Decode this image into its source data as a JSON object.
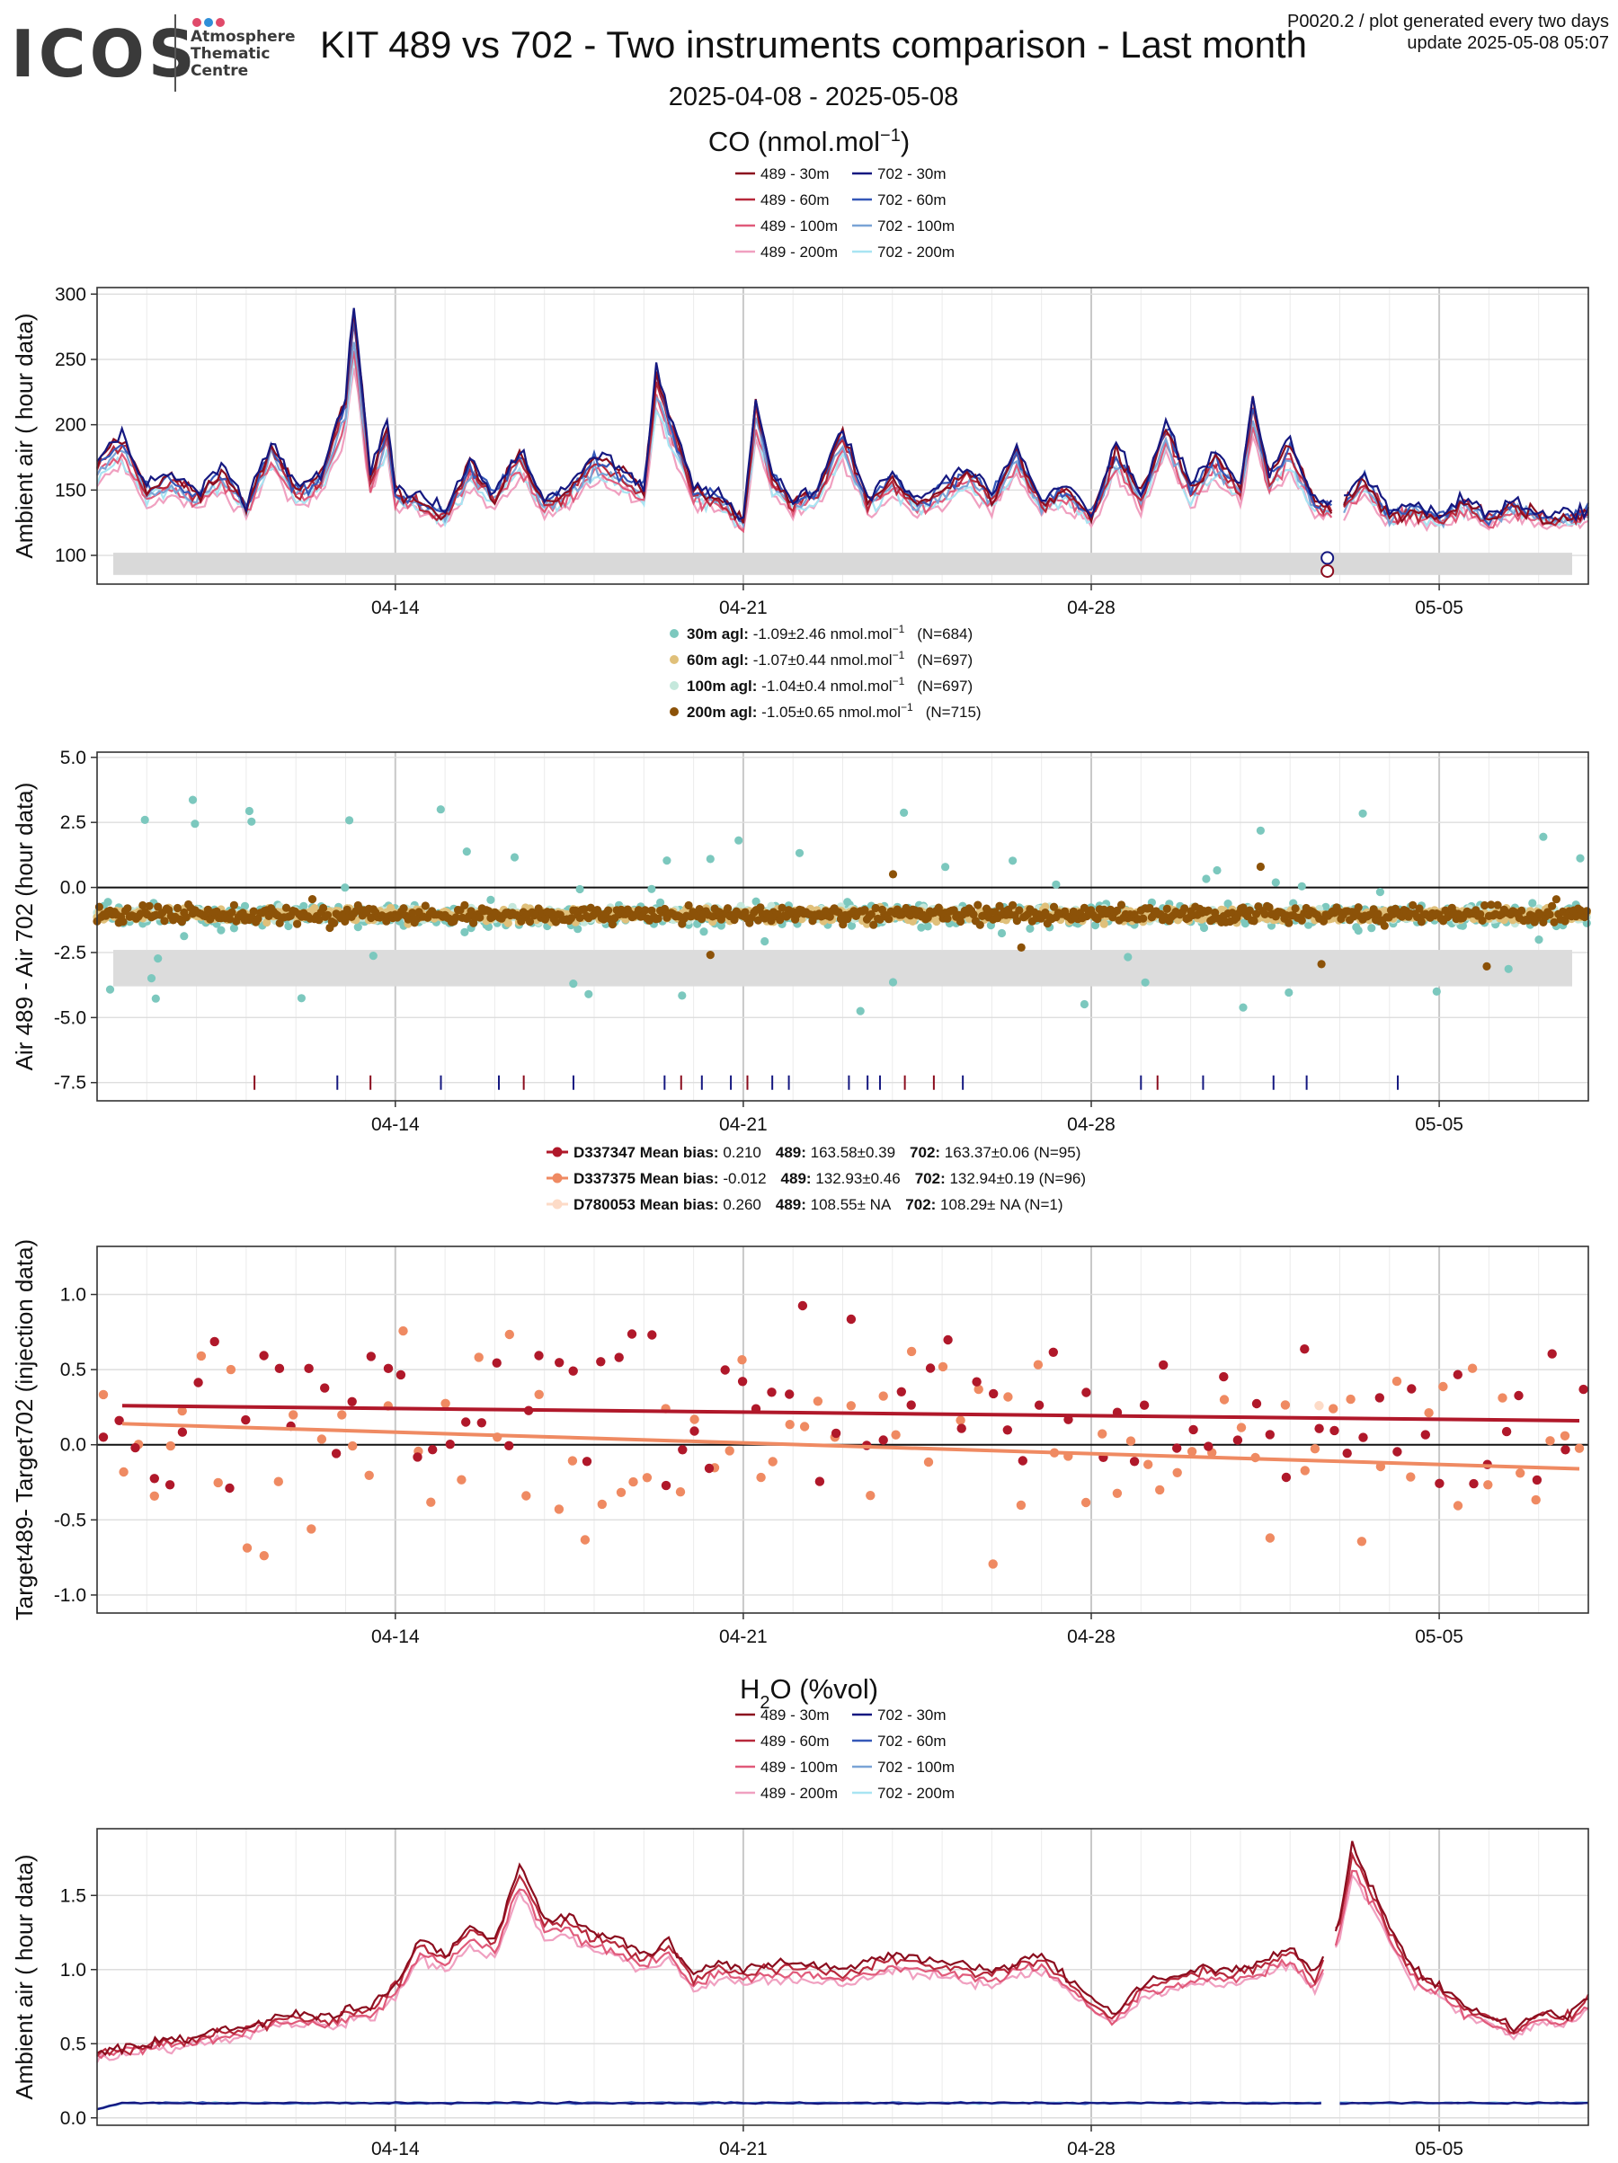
{
  "header": {
    "logo": "ICOS",
    "logo_sub": [
      "Atmosphere",
      "Thematic",
      "Centre"
    ],
    "title": "KIT 489 vs 702 - Two instruments comparison - Last month",
    "subtitle": "2025-04-08 - 2025-05-08",
    "meta_line1": "P0020.2 / plot generated every two days",
    "meta_line2": "update  2025-05-08 05:07"
  },
  "colors": {
    "489_30": "#8b0d1e",
    "489_60": "#b7283b",
    "489_100": "#e05a7a",
    "489_200": "#f0a0c0",
    "702_30": "#151880",
    "702_60": "#3558b8",
    "702_100": "#7aa4d6",
    "702_200": "#a8e4f2",
    "diff_30": "#7cc8be",
    "diff_60": "#e0c07a",
    "diff_100": "#c5e8dc",
    "diff_200": "#8c5208",
    "tgt_1": "#b0182a",
    "tgt_2": "#ef8a62",
    "tgt_3": "#fddbc7"
  },
  "chart_data": [
    {
      "id": "co_ambient",
      "type": "line",
      "title": "CO (nmol.mol",
      "title_sup": "−1",
      "title_end": ")",
      "ylabel": "Ambient air ( hour data)",
      "xlim": [
        "2025-04-08",
        "2025-05-08"
      ],
      "ylim": [
        78,
        305
      ],
      "x_ticks": [
        "04-14",
        "04-21",
        "04-28",
        "05-05"
      ],
      "y_ticks": [
        100,
        150,
        200,
        250,
        300
      ],
      "band": [
        85,
        102
      ],
      "legend": [
        "489 - 30m",
        "489 - 60m",
        "489 - 100m",
        "489 - 200m",
        "702 - 30m",
        "702 - 60m",
        "702 - 100m",
        "702 - 200m"
      ],
      "markers": [
        {
          "x": "2025-05-02T18:00",
          "y": 98,
          "series": "702"
        },
        {
          "x": "2025-05-02T18:00",
          "y": 88,
          "series": "489"
        }
      ],
      "series_profile": [
        [
          "2025-04-08",
          172
        ],
        [
          "2025-04-08T12",
          190
        ],
        [
          "2025-04-09",
          150
        ],
        [
          "2025-04-09T12",
          160
        ],
        [
          "2025-04-10",
          145
        ],
        [
          "2025-04-10T12",
          165
        ],
        [
          "2025-04-11",
          138
        ],
        [
          "2025-04-11T12",
          185
        ],
        [
          "2025-04-12",
          150
        ],
        [
          "2025-04-12T12",
          160
        ],
        [
          "2025-04-13",
          220
        ],
        [
          "2025-04-13T04",
          292
        ],
        [
          "2025-04-13T12",
          160
        ],
        [
          "2025-04-13T20",
          200
        ],
        [
          "2025-04-14",
          148
        ],
        [
          "2025-04-14T12",
          142
        ],
        [
          "2025-04-15",
          130
        ],
        [
          "2025-04-15T12",
          170
        ],
        [
          "2025-04-16",
          145
        ],
        [
          "2025-04-16T12",
          180
        ],
        [
          "2025-04-17",
          140
        ],
        [
          "2025-04-17T12",
          150
        ],
        [
          "2025-04-18",
          175
        ],
        [
          "2025-04-18T12",
          165
        ],
        [
          "2025-04-19",
          150
        ],
        [
          "2025-04-19T06",
          240
        ],
        [
          "2025-04-19T14",
          200
        ],
        [
          "2025-04-20",
          150
        ],
        [
          "2025-04-20T12",
          145
        ],
        [
          "2025-04-21",
          125
        ],
        [
          "2025-04-21T06",
          215
        ],
        [
          "2025-04-21T14",
          160
        ],
        [
          "2025-04-22",
          140
        ],
        [
          "2025-04-22T12",
          150
        ],
        [
          "2025-04-23",
          195
        ],
        [
          "2025-04-23T12",
          140
        ],
        [
          "2025-04-24",
          160
        ],
        [
          "2025-04-24T12",
          140
        ],
        [
          "2025-04-25",
          150
        ],
        [
          "2025-04-25T12",
          165
        ],
        [
          "2025-04-26",
          145
        ],
        [
          "2025-04-26T12",
          180
        ],
        [
          "2025-04-27",
          140
        ],
        [
          "2025-04-27T12",
          150
        ],
        [
          "2025-04-28",
          130
        ],
        [
          "2025-04-28T12",
          180
        ],
        [
          "2025-04-29",
          145
        ],
        [
          "2025-04-29T12",
          200
        ],
        [
          "2025-04-30",
          150
        ],
        [
          "2025-04-30T12",
          175
        ],
        [
          "2025-05-01",
          150
        ],
        [
          "2025-05-01T06",
          218
        ],
        [
          "2025-05-01T14",
          160
        ],
        [
          "2025-05-02",
          185
        ],
        [
          "2025-05-02T12",
          140
        ],
        [
          "2025-05-03",
          135
        ],
        [
          "2025-05-03T12",
          160
        ],
        [
          "2025-05-04",
          130
        ],
        [
          "2025-05-04T12",
          135
        ],
        [
          "2025-05-05",
          128
        ],
        [
          "2025-05-05T12",
          140
        ],
        [
          "2025-05-06",
          128
        ],
        [
          "2025-05-06T12",
          138
        ],
        [
          "2025-05-07",
          130
        ],
        [
          "2025-05-07T12",
          128
        ],
        [
          "2025-05-08",
          132
        ]
      ]
    },
    {
      "id": "co_diff",
      "type": "scatter",
      "ylabel": "Air 489 - Air 702 (hour data)",
      "xlim": [
        "2025-04-08",
        "2025-05-08"
      ],
      "ylim": [
        -8.2,
        5.2
      ],
      "x_ticks": [
        "04-14",
        "04-21",
        "04-28",
        "05-05"
      ],
      "y_ticks": [
        5.0,
        2.5,
        0.0,
        -2.5,
        -5.0,
        -7.5
      ],
      "band": [
        -3.8,
        -2.4
      ],
      "legend": [
        {
          "label": "30m agl:",
          "text": "-1.09±2.46 nmol.mol",
          "sup": "−1",
          "n": "(N=684)"
        },
        {
          "label": "60m agl:",
          "text": "-1.07±0.44 nmol.mol",
          "sup": "−1",
          "n": "(N=697)"
        },
        {
          "label": "100m agl:",
          "text": "-1.04±0.4 nmol.mol",
          "sup": "−1",
          "n": "(N=697)"
        },
        {
          "label": "200m agl:",
          "text": "-1.05±0.65 nmol.mol",
          "sup": "−1",
          "n": "(N=715)"
        }
      ],
      "series": [
        {
          "name": "30m agl",
          "mean": -1.09,
          "sd": 2.46,
          "n": 684
        },
        {
          "name": "60m agl",
          "mean": -1.07,
          "sd": 0.44,
          "n": 697
        },
        {
          "name": "100m agl",
          "mean": -1.04,
          "sd": 0.4,
          "n": 697
        },
        {
          "name": "200m agl",
          "mean": -1.05,
          "sd": 0.65,
          "n": 715
        }
      ],
      "event_ticks_702": [
        "2025-04-12T20",
        "2025-04-14T22",
        "2025-04-16T02",
        "2025-04-17T14",
        "2025-04-19T10",
        "2025-04-20T04",
        "2025-04-20T18",
        "2025-04-21T14",
        "2025-04-21T22",
        "2025-04-23T03",
        "2025-04-23T12",
        "2025-04-23T18",
        "2025-04-25T10",
        "2025-04-29T00",
        "2025-04-30T06",
        "2025-05-01T16",
        "2025-05-02T08",
        "2025-05-04T04"
      ],
      "event_ticks_489": [
        "2025-04-11T04",
        "2025-04-13T12",
        "2025-04-16T14",
        "2025-04-19T18",
        "2025-04-21T02",
        "2025-04-24T06",
        "2025-04-24T20",
        "2025-04-29T08"
      ]
    },
    {
      "id": "target_diff",
      "type": "scatter",
      "ylabel": "Target489- Target702 (injection data)",
      "xlim": [
        "2025-04-08",
        "2025-05-08"
      ],
      "ylim": [
        -1.12,
        1.32
      ],
      "x_ticks": [
        "04-14",
        "04-21",
        "04-28",
        "05-05"
      ],
      "y_ticks": [
        1.0,
        0.5,
        0.0,
        -0.5,
        -1.0
      ],
      "legend": [
        {
          "label": "D337347",
          "bias_label": "Mean bias:",
          "bias": "0.210",
          "v489_label": "489:",
          "v489": "163.58±0.39",
          "v702_label": "702:",
          "v702": "163.37±0.06",
          "n": "(N=95)"
        },
        {
          "label": "D337375",
          "bias_label": "Mean bias:",
          "bias": "-0.012",
          "v489_label": "489:",
          "v489": "132.93±0.46",
          "v702_label": "702:",
          "v702": "132.94±0.19",
          "n": "(N=96)"
        },
        {
          "label": "D780053",
          "bias_label": "Mean bias:",
          "bias": "0.260",
          "v489_label": "489:",
          "v489": "108.55±  NA",
          "v702_label": "702:",
          "v702": "108.29±  NA",
          "n": "(N=1)"
        }
      ],
      "trend_lines": [
        {
          "name": "D337347",
          "x": [
            "2025-04-08",
            "2025-05-08"
          ],
          "y": [
            0.26,
            0.16
          ]
        },
        {
          "name": "D337375",
          "x": [
            "2025-04-08",
            "2025-05-08"
          ],
          "y": [
            0.14,
            -0.16
          ]
        }
      ]
    },
    {
      "id": "h2o_ambient",
      "type": "line",
      "title": "H",
      "title_sub": "2",
      "title_end": "O (%vol)",
      "ylabel": "Ambient air ( hour data)",
      "xlim": [
        "2025-04-08",
        "2025-05-08"
      ],
      "ylim": [
        -0.05,
        1.95
      ],
      "x_ticks": [
        "04-14",
        "04-21",
        "04-28",
        "05-05"
      ],
      "y_ticks": [
        0.0,
        0.5,
        1.0,
        1.5
      ],
      "legend": [
        "489 - 30m",
        "489 - 60m",
        "489 - 100m",
        "489 - 200m",
        "702 - 30m",
        "702 - 60m",
        "702 - 100m",
        "702 - 200m"
      ],
      "series_702_level": 0.1,
      "series_profile": [
        [
          "2025-04-08",
          0.45
        ],
        [
          "2025-04-09",
          0.5
        ],
        [
          "2025-04-10",
          0.55
        ],
        [
          "2025-04-11",
          0.62
        ],
        [
          "2025-04-12",
          0.7
        ],
        [
          "2025-04-12T18",
          0.68
        ],
        [
          "2025-04-13",
          0.72
        ],
        [
          "2025-04-13T12",
          0.75
        ],
        [
          "2025-04-14",
          0.9
        ],
        [
          "2025-04-14T12",
          1.2
        ],
        [
          "2025-04-15",
          1.1
        ],
        [
          "2025-04-15T12",
          1.3
        ],
        [
          "2025-04-16",
          1.2
        ],
        [
          "2025-04-16T12",
          1.7
        ],
        [
          "2025-04-17",
          1.35
        ],
        [
          "2025-04-17T12",
          1.35
        ],
        [
          "2025-04-18",
          1.25
        ],
        [
          "2025-04-18T12",
          1.2
        ],
        [
          "2025-04-19",
          1.1
        ],
        [
          "2025-04-19T12",
          1.2
        ],
        [
          "2025-04-20",
          0.95
        ],
        [
          "2025-04-20T12",
          1.05
        ],
        [
          "2025-04-21",
          1.0
        ],
        [
          "2025-04-22",
          1.05
        ],
        [
          "2025-04-23",
          1.0
        ],
        [
          "2025-04-24",
          1.1
        ],
        [
          "2025-04-25",
          1.05
        ],
        [
          "2025-04-26",
          1.0
        ],
        [
          "2025-04-27",
          1.1
        ],
        [
          "2025-04-28",
          0.8
        ],
        [
          "2025-04-28T12",
          0.7
        ],
        [
          "2025-04-29",
          0.9
        ],
        [
          "2025-04-30",
          1.0
        ],
        [
          "2025-05-01",
          1.0
        ],
        [
          "2025-05-02",
          1.15
        ],
        [
          "2025-05-02T12",
          0.95
        ],
        [
          "2025-05-03",
          1.35
        ],
        [
          "2025-05-03T06",
          1.82
        ],
        [
          "2025-05-03T18",
          1.5
        ],
        [
          "2025-05-04",
          1.3
        ],
        [
          "2025-05-04T12",
          1.0
        ],
        [
          "2025-05-05",
          0.9
        ],
        [
          "2025-05-05T12",
          0.75
        ],
        [
          "2025-05-06",
          0.7
        ],
        [
          "2025-05-06T12",
          0.6
        ],
        [
          "2025-05-07",
          0.72
        ],
        [
          "2025-05-07T12",
          0.68
        ],
        [
          "2025-05-08",
          0.82
        ]
      ]
    }
  ]
}
